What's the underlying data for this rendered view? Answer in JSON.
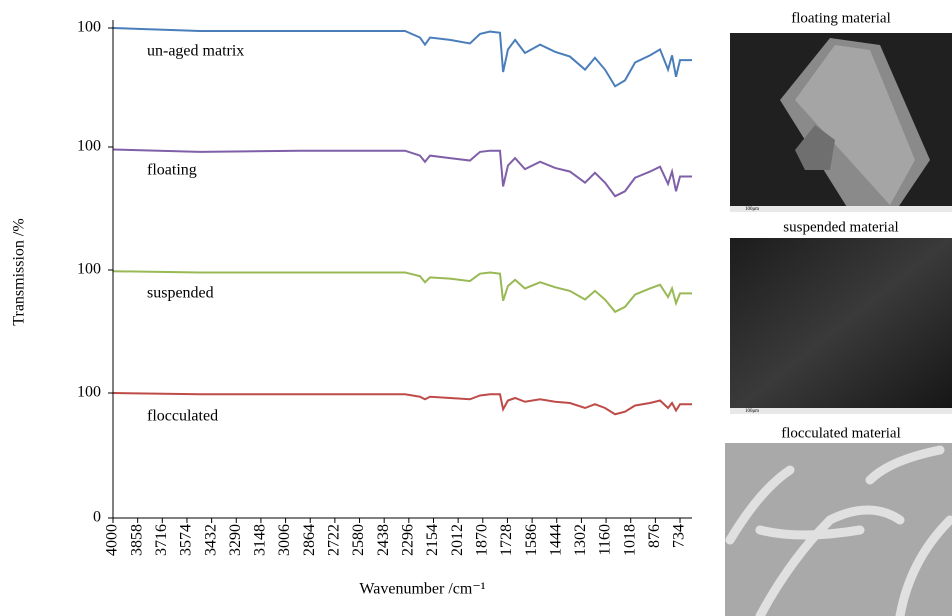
{
  "chart_data": [
    {
      "type": "line",
      "ylabel": "Transmission /%",
      "x": [
        4000,
        3499,
        2923,
        2404,
        2318,
        2232,
        2203,
        2174,
        2059,
        1944,
        1886,
        1828,
        1771,
        1753,
        1725,
        1684,
        1627,
        1540,
        1454,
        1368,
        1281,
        1224,
        1166,
        1108,
        1051,
        993,
        907,
        849,
        803,
        780,
        757,
        734,
        665
      ],
      "series": [
        {
          "name": "un-aged matrix",
          "color": "#4a7ebb",
          "values": [
            100,
            97.5,
            97.5,
            97.5,
            97.5,
            92,
            86,
            92,
            90,
            87,
            95,
            97,
            96,
            63,
            82,
            90,
            79,
            86,
            80,
            76,
            65,
            75,
            65,
            51,
            56,
            71,
            77,
            82,
            65,
            77,
            59,
            73,
            73
          ]
        }
      ],
      "xlim": [
        4000,
        665
      ],
      "ylim": [
        0,
        100
      ],
      "yticks": [
        100
      ]
    },
    {
      "type": "line",
      "x": [
        4000,
        3499,
        2923,
        2404,
        2318,
        2232,
        2203,
        2174,
        2059,
        1944,
        1886,
        1828,
        1771,
        1753,
        1725,
        1684,
        1627,
        1540,
        1454,
        1368,
        1281,
        1224,
        1166,
        1108,
        1051,
        993,
        907,
        849,
        803,
        780,
        757,
        734,
        665
      ],
      "series": [
        {
          "name": "floating",
          "color": "#7e5fa8",
          "values": [
            98,
            96,
            97,
            97,
            97,
            93,
            88,
            93,
            91,
            89,
            96,
            97,
            97,
            68,
            85,
            91,
            82,
            88,
            83,
            80,
            71,
            79,
            71,
            60,
            64,
            75,
            80,
            84,
            70,
            80,
            64,
            76,
            76
          ]
        }
      ],
      "xlim": [
        4000,
        665
      ],
      "ylim": [
        0,
        100
      ],
      "yticks": [
        100
      ]
    },
    {
      "type": "line",
      "x": [
        4000,
        3499,
        2923,
        2404,
        2318,
        2232,
        2203,
        2174,
        2059,
        1944,
        1886,
        1828,
        1771,
        1753,
        1725,
        1684,
        1627,
        1540,
        1454,
        1368,
        1281,
        1224,
        1166,
        1108,
        1051,
        993,
        907,
        849,
        803,
        780,
        757,
        734,
        665
      ],
      "series": [
        {
          "name": "suspended",
          "color": "#98b954",
          "values": [
            99,
            98,
            98,
            98,
            98,
            95,
            90,
            94,
            93,
            91,
            97,
            98,
            97,
            75,
            87,
            92,
            85,
            90,
            86,
            83,
            76,
            83,
            76,
            66,
            70,
            80,
            85,
            88,
            78,
            85,
            73,
            81,
            81
          ]
        }
      ],
      "xlim": [
        4000,
        665
      ],
      "ylim": [
        0,
        100
      ],
      "yticks": [
        100
      ]
    },
    {
      "type": "line",
      "xlabel": "Wavenumber /cm⁻¹",
      "x": [
        4000,
        3499,
        2923,
        2404,
        2318,
        2232,
        2203,
        2174,
        2059,
        1944,
        1886,
        1828,
        1771,
        1753,
        1725,
        1684,
        1627,
        1540,
        1454,
        1368,
        1281,
        1224,
        1166,
        1108,
        1051,
        993,
        907,
        849,
        803,
        780,
        757,
        734,
        665
      ],
      "series": [
        {
          "name": "flocculated",
          "color": "#be4b48",
          "values": [
            100,
            99,
            99,
            99,
            99,
            97,
            95,
            97,
            96,
            95,
            98,
            99,
            99,
            87,
            94,
            96,
            93,
            95,
            93,
            92,
            88,
            91,
            88,
            83,
            85,
            90,
            92,
            94,
            88,
            92,
            86,
            91,
            91
          ]
        }
      ],
      "xlim": [
        4000,
        665
      ],
      "ylim": [
        0,
        100
      ],
      "yticks": [
        0,
        100
      ],
      "xticks": [
        4000,
        3858,
        3716,
        3574,
        3432,
        3290,
        3148,
        3006,
        2864,
        2722,
        2580,
        2438,
        2296,
        2154,
        2012,
        1870,
        1728,
        1586,
        1444,
        1302,
        1160,
        1018,
        876,
        734
      ]
    }
  ],
  "images": [
    {
      "caption": "floating material",
      "scale": "100μm"
    },
    {
      "caption": "suspended material",
      "scale": "100μm"
    },
    {
      "caption": "flocculated material"
    }
  ]
}
